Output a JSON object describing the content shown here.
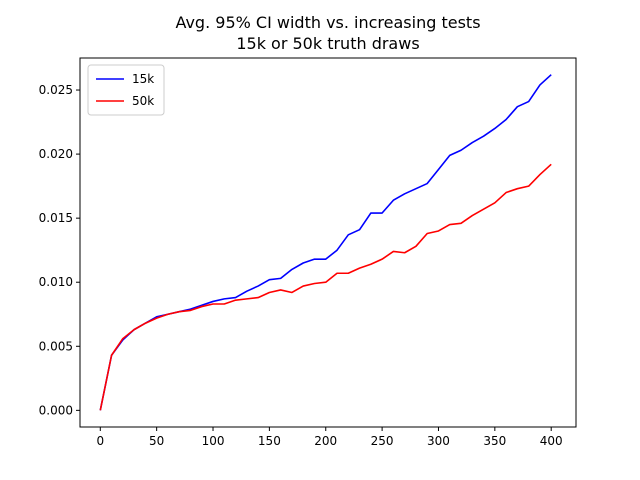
{
  "chart_data": {
    "type": "line",
    "title_line1": "Avg. 95% CI width vs. increasing tests",
    "title_line2": "15k or 50k truth draws",
    "xlabel": "",
    "ylabel": "",
    "xlim": [
      -18,
      422
    ],
    "ylim": [
      -0.0013,
      0.0275
    ],
    "x_ticks": [
      0,
      50,
      100,
      150,
      200,
      250,
      300,
      350,
      400
    ],
    "x_tick_labels": [
      "0",
      "50",
      "100",
      "150",
      "200",
      "250",
      "300",
      "350",
      "400"
    ],
    "y_ticks": [
      0.0,
      0.005,
      0.01,
      0.015,
      0.02,
      0.025
    ],
    "y_tick_labels": [
      "0.000",
      "0.005",
      "0.010",
      "0.015",
      "0.020",
      "0.025"
    ],
    "grid": false,
    "legend_position": "top-left",
    "x": [
      0,
      10,
      20,
      30,
      40,
      50,
      60,
      70,
      80,
      90,
      100,
      110,
      120,
      130,
      140,
      150,
      160,
      170,
      180,
      190,
      200,
      210,
      220,
      230,
      240,
      250,
      260,
      270,
      280,
      290,
      300,
      310,
      320,
      330,
      340,
      350,
      360,
      370,
      380,
      390,
      400
    ],
    "series": [
      {
        "name": "15k",
        "color": "#0000ff",
        "values": [
          0.0,
          0.0043,
          0.0055,
          0.0063,
          0.0068,
          0.0073,
          0.0075,
          0.0077,
          0.0079,
          0.0082,
          0.0085,
          0.0087,
          0.0088,
          0.0093,
          0.0097,
          0.0102,
          0.0103,
          0.011,
          0.0115,
          0.0118,
          0.0118,
          0.0125,
          0.0137,
          0.0141,
          0.0154,
          0.0154,
          0.0164,
          0.0169,
          0.0173,
          0.0177,
          0.0188,
          0.0199,
          0.0203,
          0.0209,
          0.0214,
          0.022,
          0.0227,
          0.0237,
          0.0241,
          0.0254,
          0.0262
        ]
      },
      {
        "name": "50k",
        "color": "#ff0000",
        "values": [
          0.0,
          0.0043,
          0.0056,
          0.0063,
          0.0068,
          0.0072,
          0.0075,
          0.0077,
          0.0078,
          0.0081,
          0.0083,
          0.0083,
          0.0086,
          0.0087,
          0.0088,
          0.0092,
          0.0094,
          0.0092,
          0.0097,
          0.0099,
          0.01,
          0.0107,
          0.0107,
          0.0111,
          0.0114,
          0.0118,
          0.0124,
          0.0123,
          0.0128,
          0.0138,
          0.014,
          0.0145,
          0.0146,
          0.0152,
          0.0157,
          0.0162,
          0.017,
          0.0173,
          0.0175,
          0.0184,
          0.0192
        ]
      }
    ]
  }
}
